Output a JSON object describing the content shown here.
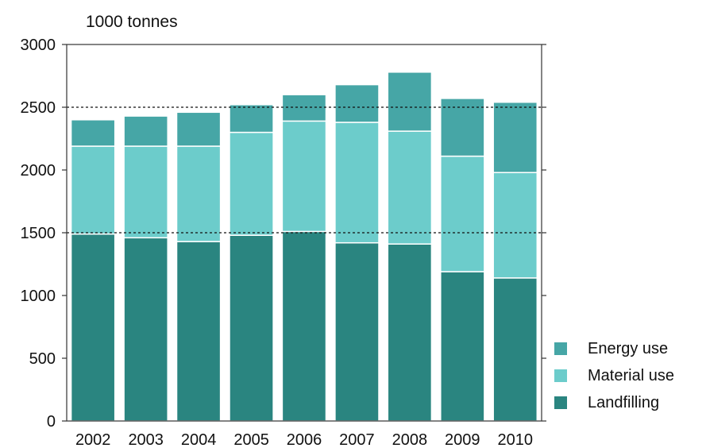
{
  "chart_data": {
    "type": "bar",
    "stacked": true,
    "unit_label": "1000 tonnes",
    "categories": [
      "2002",
      "2003",
      "2004",
      "2005",
      "2006",
      "2007",
      "2008",
      "2009",
      "2010"
    ],
    "series": [
      {
        "name": "Landfilling",
        "color": "#2a8580",
        "values": [
          1490,
          1460,
          1430,
          1480,
          1510,
          1420,
          1410,
          1190,
          1140
        ]
      },
      {
        "name": "Material use",
        "color": "#6ccccb",
        "values": [
          700,
          730,
          760,
          820,
          880,
          960,
          900,
          920,
          840
        ]
      },
      {
        "name": "Energy use",
        "color": "#46a6a6",
        "values": [
          210,
          240,
          270,
          220,
          210,
          300,
          470,
          460,
          560
        ]
      }
    ],
    "ylim": [
      0,
      3000
    ],
    "yticks": [
      0,
      500,
      1000,
      1500,
      2000,
      2500,
      3000
    ],
    "reference_lines": [
      2500,
      1500
    ],
    "legend_position": "bottom-right",
    "legend_order": [
      "Energy use",
      "Material use",
      "Landfilling"
    ]
  }
}
